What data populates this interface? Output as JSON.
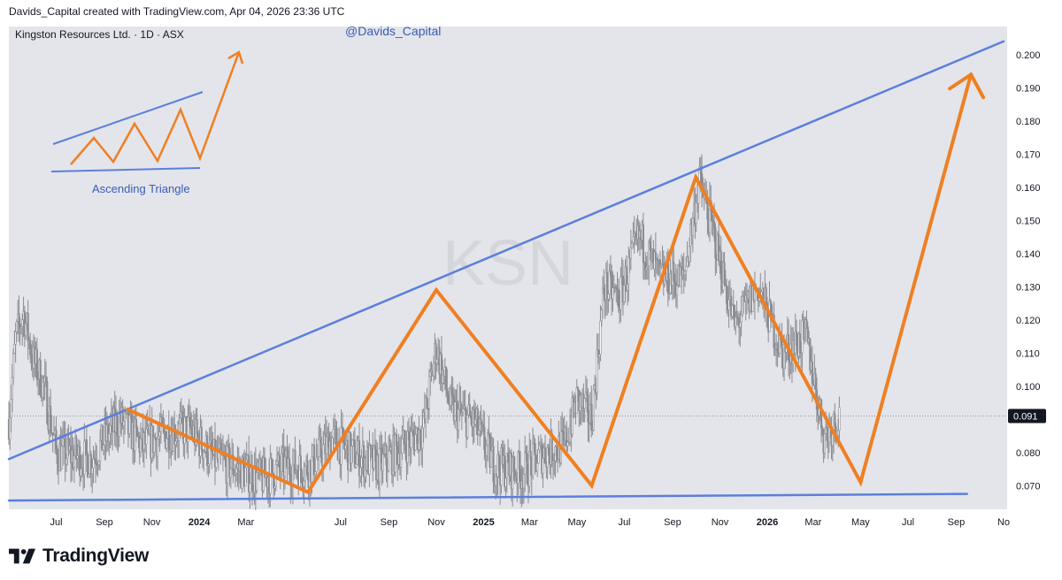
{
  "header": {
    "attribution": "Davids_Capital created with TradingView.com, Apr 04, 2026 23:36 UTC"
  },
  "chart": {
    "symbol_label": "Kingston Resources Ltd. · 1D · ASX",
    "watermark": "KSN",
    "author_tag": "@Davids_Capital",
    "inset_label": "Ascending Triangle",
    "last_price": "0.091",
    "colors": {
      "background": "#e3e5ea",
      "trendline": "#5b7fdc",
      "pattern": "#f07f22",
      "candles": "#8a8c93",
      "text": "#131722",
      "label_blue": "#3a5cb6"
    }
  },
  "chart_data": {
    "type": "candlestick",
    "y_axis": {
      "min": 0.065,
      "max": 0.205,
      "ticks": [
        "0.200",
        "0.190",
        "0.180",
        "0.170",
        "0.160",
        "0.150",
        "0.140",
        "0.130",
        "0.120",
        "0.110",
        "0.100",
        "0.091",
        "0.080",
        "0.070"
      ]
    },
    "x_axis": {
      "ticks": [
        {
          "date": "2023-07-01",
          "label": "Jul",
          "bold": false
        },
        {
          "date": "2023-09-01",
          "label": "Sep",
          "bold": false
        },
        {
          "date": "2023-11-01",
          "label": "Nov",
          "bold": false
        },
        {
          "date": "2024-01-01",
          "label": "2024",
          "bold": true
        },
        {
          "date": "2024-03-01",
          "label": "Mar",
          "bold": false
        },
        {
          "date": "2024-07-01",
          "label": "Jul",
          "bold": false
        },
        {
          "date": "2024-09-01",
          "label": "Sep",
          "bold": false
        },
        {
          "date": "2024-11-01",
          "label": "Nov",
          "bold": false
        },
        {
          "date": "2025-01-01",
          "label": "2025",
          "bold": true
        },
        {
          "date": "2025-03-01",
          "label": "Mar",
          "bold": false
        },
        {
          "date": "2025-05-01",
          "label": "May",
          "bold": false
        },
        {
          "date": "2025-07-01",
          "label": "Jul",
          "bold": false
        },
        {
          "date": "2025-09-01",
          "label": "Sep",
          "bold": false
        },
        {
          "date": "2025-11-01",
          "label": "Nov",
          "bold": false
        },
        {
          "date": "2026-01-01",
          "label": "2026",
          "bold": true
        },
        {
          "date": "2026-03-01",
          "label": "Mar",
          "bold": false
        },
        {
          "date": "2026-05-01",
          "label": "May",
          "bold": false
        },
        {
          "date": "2026-07-01",
          "label": "Jul",
          "bold": false
        },
        {
          "date": "2026-09-01",
          "label": "Sep",
          "bold": false
        },
        {
          "date": "2026-11-01",
          "label": "No",
          "bold": false
        }
      ]
    },
    "price_path": [
      {
        "date": "2023-05-01",
        "price": 0.09
      },
      {
        "date": "2023-05-10",
        "price": 0.115
      },
      {
        "date": "2023-05-20",
        "price": 0.122
      },
      {
        "date": "2023-06-01",
        "price": 0.108
      },
      {
        "date": "2023-06-15",
        "price": 0.1
      },
      {
        "date": "2023-07-01",
        "price": 0.08
      },
      {
        "date": "2023-08-15",
        "price": 0.078
      },
      {
        "date": "2023-09-20",
        "price": 0.09
      },
      {
        "date": "2023-10-20",
        "price": 0.082
      },
      {
        "date": "2023-11-20",
        "price": 0.086
      },
      {
        "date": "2023-12-20",
        "price": 0.087
      },
      {
        "date": "2024-01-20",
        "price": 0.078
      },
      {
        "date": "2024-02-10",
        "price": 0.076
      },
      {
        "date": "2024-03-20",
        "price": 0.072
      },
      {
        "date": "2024-04-20",
        "price": 0.076
      },
      {
        "date": "2024-05-20",
        "price": 0.075
      },
      {
        "date": "2024-06-20",
        "price": 0.084
      },
      {
        "date": "2024-07-20",
        "price": 0.079
      },
      {
        "date": "2024-08-20",
        "price": 0.076
      },
      {
        "date": "2024-09-20",
        "price": 0.082
      },
      {
        "date": "2024-10-15",
        "price": 0.087
      },
      {
        "date": "2024-11-01",
        "price": 0.112
      },
      {
        "date": "2024-11-20",
        "price": 0.093
      },
      {
        "date": "2024-12-20",
        "price": 0.089
      },
      {
        "date": "2025-01-15",
        "price": 0.076
      },
      {
        "date": "2025-02-20",
        "price": 0.074
      },
      {
        "date": "2025-03-20",
        "price": 0.08
      },
      {
        "date": "2025-04-15",
        "price": 0.082
      },
      {
        "date": "2025-05-01",
        "price": 0.096
      },
      {
        "date": "2025-05-20",
        "price": 0.09
      },
      {
        "date": "2025-06-05",
        "price": 0.13
      },
      {
        "date": "2025-06-25",
        "price": 0.127
      },
      {
        "date": "2025-07-20",
        "price": 0.145
      },
      {
        "date": "2025-08-15",
        "price": 0.133
      },
      {
        "date": "2025-09-15",
        "price": 0.132
      },
      {
        "date": "2025-10-05",
        "price": 0.162
      },
      {
        "date": "2025-10-25",
        "price": 0.145
      },
      {
        "date": "2025-11-20",
        "price": 0.118
      },
      {
        "date": "2025-12-20",
        "price": 0.13
      },
      {
        "date": "2026-01-20",
        "price": 0.11
      },
      {
        "date": "2026-02-20",
        "price": 0.115
      },
      {
        "date": "2026-03-15",
        "price": 0.085
      },
      {
        "date": "2026-04-04",
        "price": 0.091
      }
    ],
    "trendlines": [
      {
        "name": "resistance",
        "from": {
          "date": "2023-05-01",
          "price": 0.078
        },
        "to": {
          "date": "2026-11-01",
          "price": 0.204
        }
      },
      {
        "name": "support",
        "from": {
          "date": "2023-05-01",
          "price": 0.0655
        },
        "to": {
          "date": "2026-09-15",
          "price": 0.0675
        }
      }
    ],
    "pattern_path": [
      {
        "date": "2023-10-01",
        "price": 0.093
      },
      {
        "date": "2024-05-20",
        "price": 0.068
      },
      {
        "date": "2024-11-01",
        "price": 0.129
      },
      {
        "date": "2025-05-20",
        "price": 0.07
      },
      {
        "date": "2025-10-01",
        "price": 0.163
      },
      {
        "date": "2026-05-01",
        "price": 0.071
      },
      {
        "date": "2026-09-20",
        "price": 0.194
      }
    ]
  }
}
